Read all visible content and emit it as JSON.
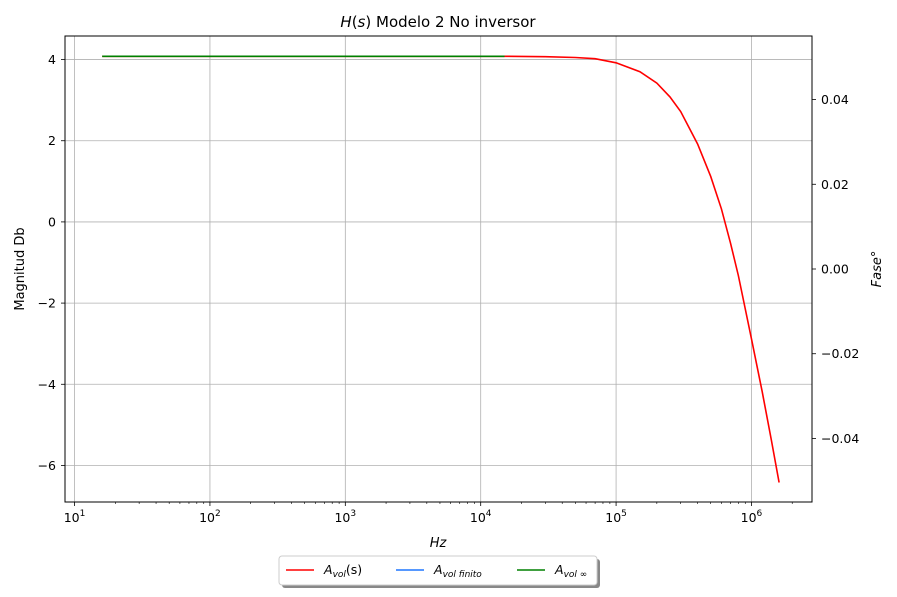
{
  "chart_data": {
    "type": "line",
    "title": "H(s) Modelo 2 No inversor",
    "title_parts": {
      "func": "H",
      "paren_open": "(",
      "var": "s",
      "paren_close": ")",
      "rest": " Modelo 2 No inversor"
    },
    "xlabel": "Hz",
    "ylabel": "Magnitud Db",
    "y2label": "Fase°",
    "xscale": "log",
    "xlim": [
      8.5,
      2800000
    ],
    "ylim": [
      -6.9,
      4.58
    ],
    "y2lim": [
      -0.055,
      0.055
    ],
    "grid": true,
    "x_ticks": [
      {
        "base": "10",
        "exp": "1",
        "value": 10
      },
      {
        "base": "10",
        "exp": "2",
        "value": 100
      },
      {
        "base": "10",
        "exp": "3",
        "value": 1000
      },
      {
        "base": "10",
        "exp": "4",
        "value": 10000
      },
      {
        "base": "10",
        "exp": "5",
        "value": 100000
      },
      {
        "base": "10",
        "exp": "6",
        "value": 1000000
      }
    ],
    "y_ticks": [
      {
        "label": "4",
        "value": 4
      },
      {
        "label": "2",
        "value": 2
      },
      {
        "label": "0",
        "value": 0
      },
      {
        "label": "−2",
        "value": -2
      },
      {
        "label": "−4",
        "value": -4
      },
      {
        "label": "−6",
        "value": -6
      }
    ],
    "y2_ticks": [
      {
        "label": "0.04",
        "value": 0.04
      },
      {
        "label": "0.02",
        "value": 0.02
      },
      {
        "label": "0.00",
        "value": 0.0
      },
      {
        "label": "−0.02",
        "value": -0.02
      },
      {
        "label": "−0.04",
        "value": -0.04
      }
    ],
    "series": [
      {
        "name": "A_vol(s)",
        "color": "#ff0000",
        "x": [
          16,
          100,
          1000,
          10000,
          15000,
          30000,
          50000,
          70000,
          100000,
          150000,
          200000,
          250000,
          300000,
          400000,
          500000,
          600000,
          700000,
          800000,
          1000000,
          1200000,
          1400000,
          1600000
        ],
        "y": [
          4.08,
          4.08,
          4.08,
          4.08,
          4.08,
          4.07,
          4.05,
          4.02,
          3.92,
          3.7,
          3.42,
          3.08,
          2.72,
          1.92,
          1.12,
          0.32,
          -0.52,
          -1.32,
          -2.88,
          -4.18,
          -5.36,
          -6.42
        ]
      },
      {
        "name": "A_vol finito",
        "color": "#1f77ff",
        "x": [],
        "y": []
      },
      {
        "name": "A_vol ∞",
        "color": "#008000",
        "x": [
          16,
          15000
        ],
        "y": [
          4.08,
          4.08
        ]
      }
    ],
    "legend": {
      "placement": "bottom-center",
      "entries": [
        {
          "main": "A",
          "sub": "vol",
          "tail": "(s)",
          "color": "#ff0000"
        },
        {
          "main": "A",
          "sub": "vol finito",
          "tail": "",
          "color": "#1f77ff"
        },
        {
          "main": "A",
          "sub": "vol ∞",
          "tail": "",
          "color": "#008000"
        }
      ]
    }
  }
}
